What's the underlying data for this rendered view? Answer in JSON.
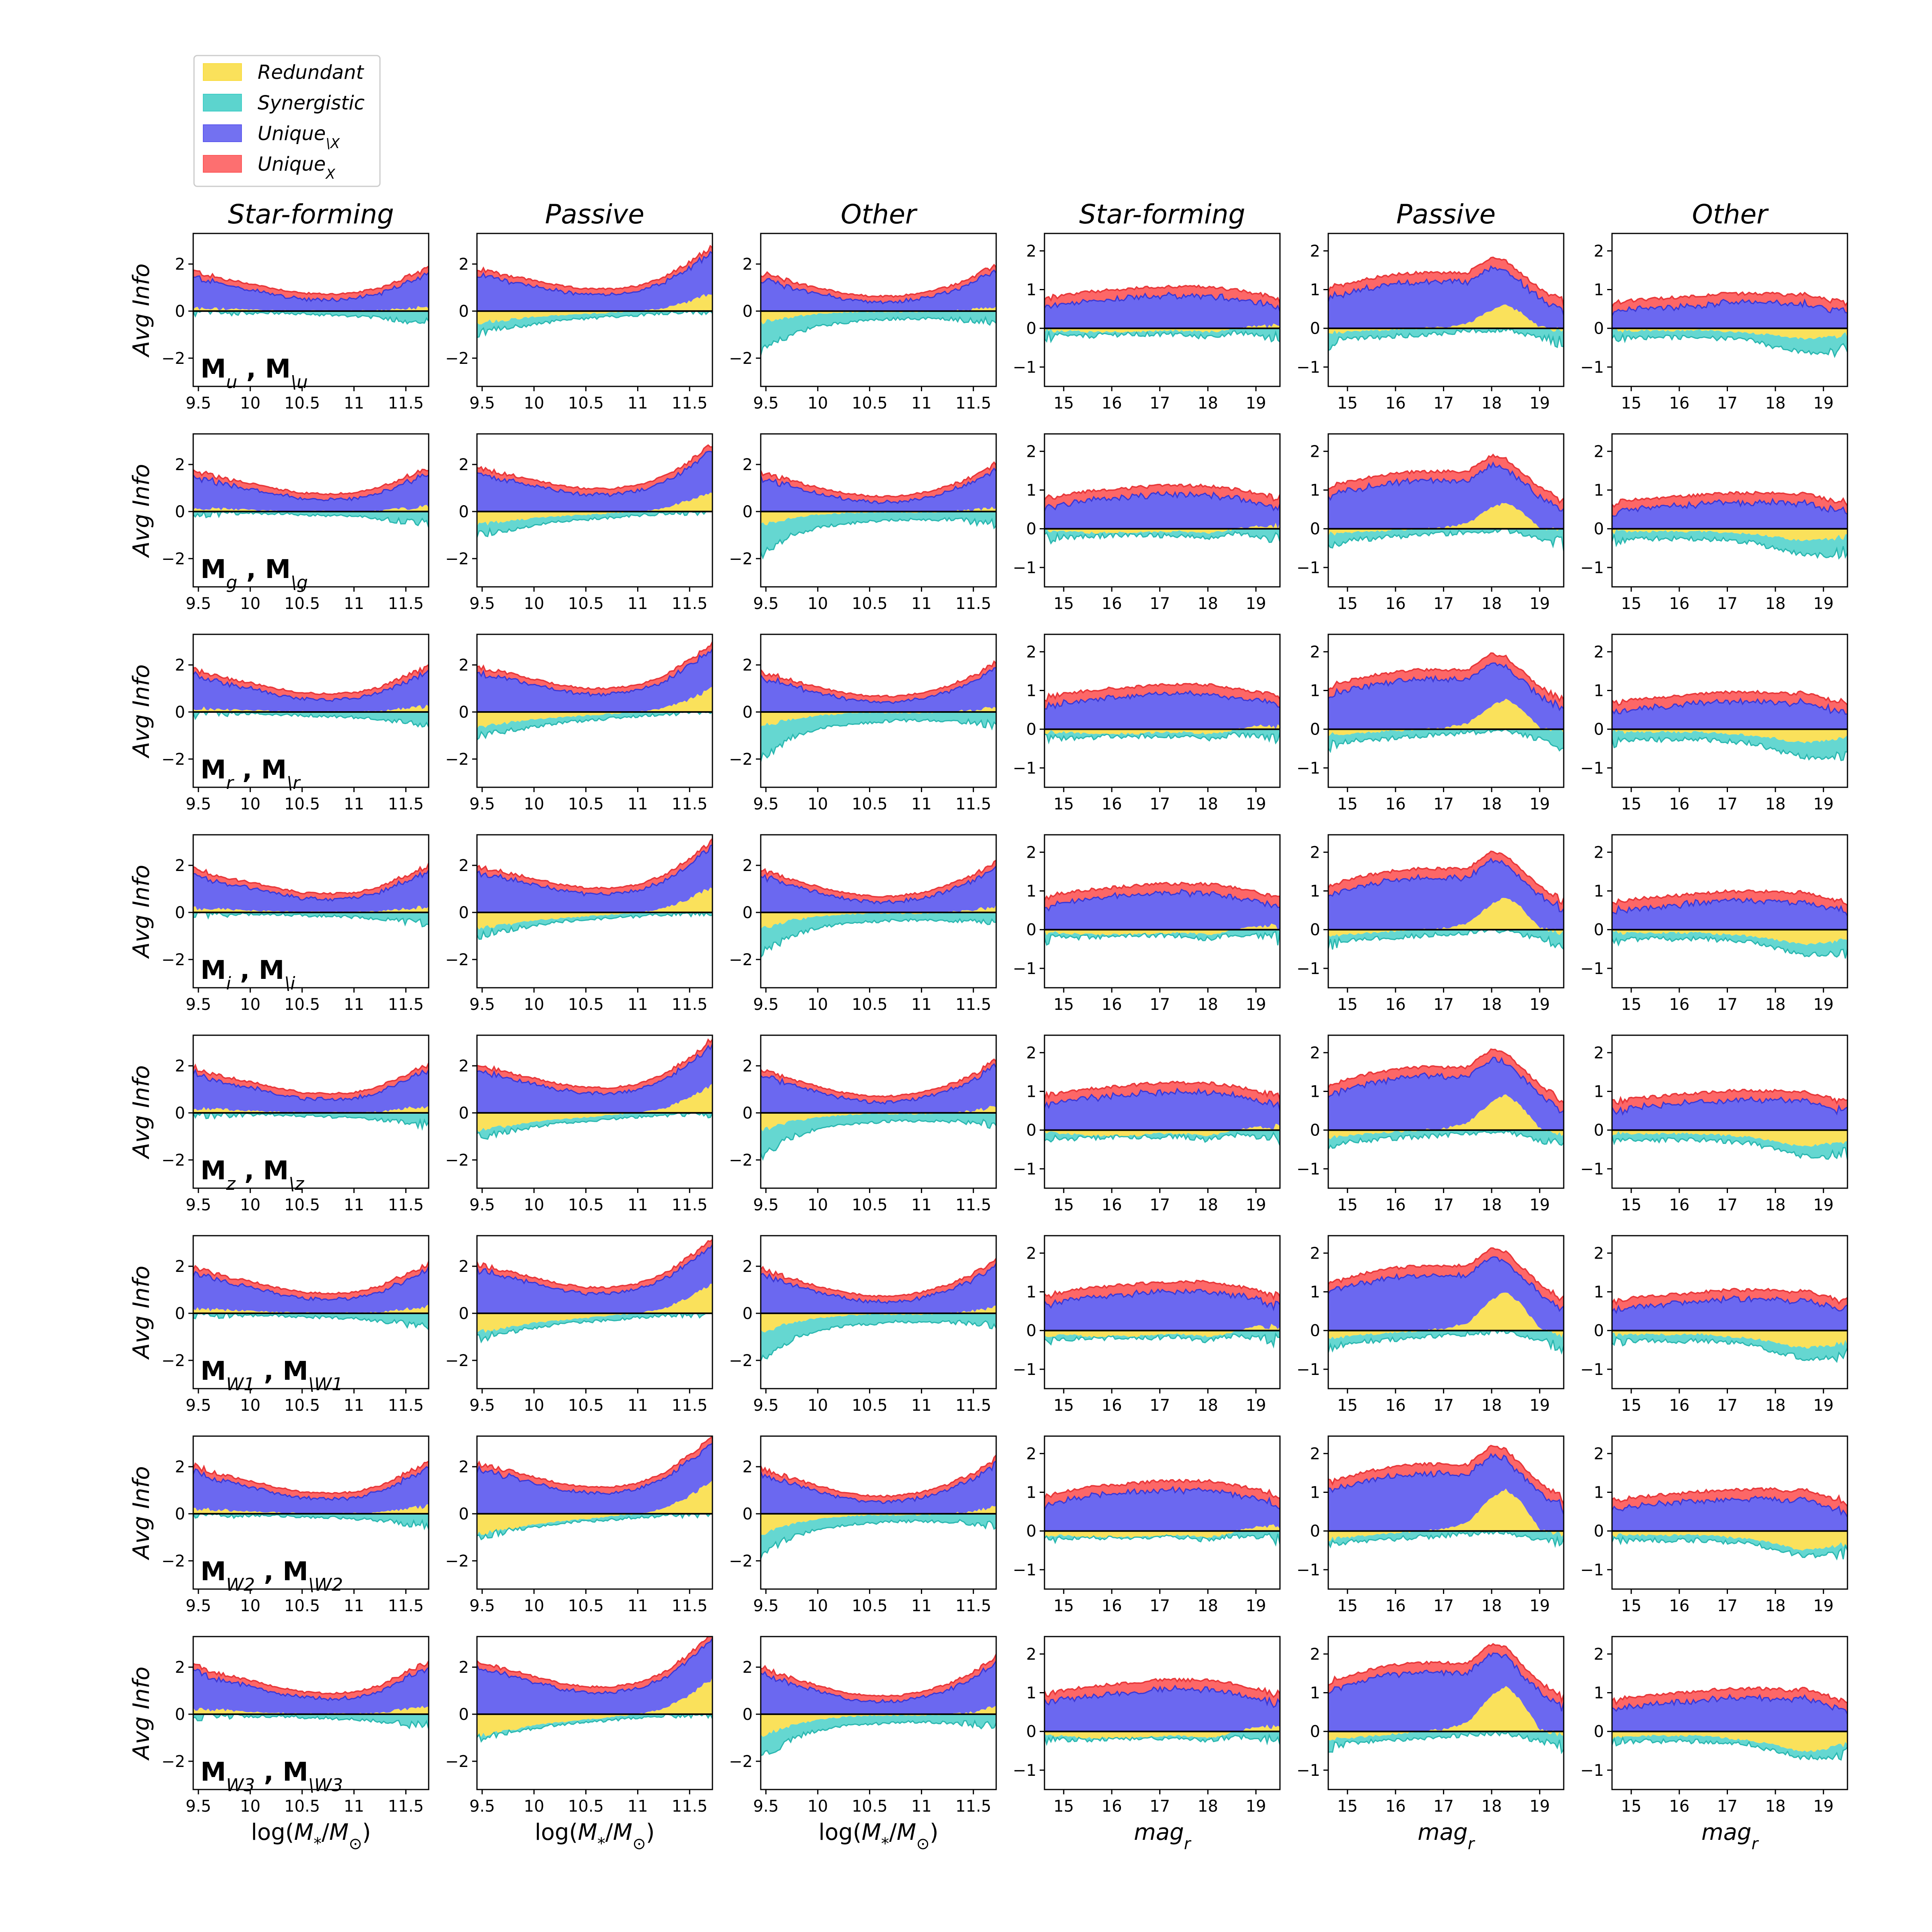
{
  "chart_data": {
    "type": "area",
    "description_series": [
      "Redundant",
      "Synergistic",
      "Unique_{\\X}",
      "Unique_{X}"
    ],
    "legend": [
      {
        "key": "redundant",
        "label": "Redundant",
        "color": "#f9dc3e"
      },
      {
        "key": "synergistic",
        "label": "Synergistic",
        "color": "#3fcdc6"
      },
      {
        "key": "unique_notx",
        "label": "Unique",
        "sub": "\\X",
        "color": "#5b58ee"
      },
      {
        "key": "unique_x",
        "label": "Unique",
        "sub": "X",
        "color": "#fd5657"
      }
    ],
    "column_titles": [
      "Star-forming",
      "Passive",
      "Other",
      "Star-forming",
      "Passive",
      "Other"
    ],
    "ylabel": "Avg Info",
    "x_axes": {
      "mass": {
        "label_main": "log(",
        "label_var": "M",
        "label_sub1": "*",
        "label_mid": "/",
        "label_var2": "M",
        "label_sub2": "⊙",
        "label_end": ")",
        "range": [
          9.45,
          11.72
        ],
        "ticks": [
          9.5,
          10,
          10.5,
          11,
          11.5
        ],
        "tick_labels": [
          "9.5",
          "10",
          "10.5",
          "11",
          "11.5"
        ]
      },
      "mag": {
        "label_main": "mag",
        "label_sub": "r",
        "range": [
          14.6,
          19.5
        ],
        "ticks": [
          15,
          16,
          17,
          18,
          19
        ],
        "tick_labels": [
          "15",
          "16",
          "17",
          "18",
          "19"
        ]
      }
    },
    "y_axes": {
      "mass": {
        "range": [
          -3.2,
          3.3
        ],
        "ticks": [
          -2,
          0,
          2
        ],
        "tick_labels": [
          "−2",
          "0",
          "2"
        ]
      },
      "mag": {
        "range": [
          -1.5,
          2.45
        ],
        "ticks": [
          -1,
          0,
          1,
          2
        ],
        "tick_labels": [
          "−1",
          "0",
          "1",
          "2"
        ]
      }
    },
    "rows": [
      {
        "band": "u",
        "label_a": "M",
        "sub_a": "u",
        "label_b": "M",
        "sub_b": "\\u"
      },
      {
        "band": "g",
        "label_a": "M",
        "sub_a": "g",
        "label_b": "M",
        "sub_b": "\\g"
      },
      {
        "band": "r",
        "label_a": "M",
        "sub_a": "r",
        "label_b": "M",
        "sub_b": "\\r"
      },
      {
        "band": "i",
        "label_a": "M",
        "sub_a": "i",
        "label_b": "M",
        "sub_b": "\\i"
      },
      {
        "band": "z",
        "label_a": "M",
        "sub_a": "z",
        "label_b": "M",
        "sub_b": "\\z"
      },
      {
        "band": "W1",
        "label_a": "M",
        "sub_a": "W1",
        "label_b": "M",
        "sub_b": "\\W1"
      },
      {
        "band": "W2",
        "label_a": "M",
        "sub_a": "W2",
        "label_b": "M",
        "sub_b": "\\W2"
      },
      {
        "band": "W3",
        "label_a": "M",
        "sub_a": "W3",
        "label_b": "M",
        "sub_b": "\\W3"
      }
    ],
    "profiles": {
      "note": "Approximate stacked averages read off the curves; x in data units, y in Avg Info.",
      "mass": {
        "x": [
          9.45,
          9.75,
          10.0,
          10.25,
          10.5,
          10.75,
          11.0,
          11.25,
          11.5,
          11.72
        ],
        "sf_total": [
          1.9,
          1.5,
          1.3,
          1.05,
          0.85,
          0.8,
          0.85,
          1.1,
          1.6,
          2.0
        ],
        "sf_redundant": [
          0.2,
          0.15,
          0.1,
          0.05,
          0.02,
          0.02,
          0.02,
          0.05,
          0.2,
          0.3
        ],
        "sf_synergistic": [
          -0.1,
          -0.1,
          -0.1,
          -0.1,
          -0.15,
          -0.2,
          -0.25,
          -0.35,
          -0.5,
          -0.6
        ],
        "passive_total": [
          2.0,
          1.7,
          1.45,
          1.2,
          1.05,
          1.05,
          1.2,
          1.6,
          2.3,
          3.1
        ],
        "passive_redundant": [
          -0.8,
          -0.6,
          -0.4,
          -0.3,
          -0.2,
          -0.1,
          0.0,
          0.2,
          0.7,
          1.3
        ],
        "passive_synergistic": [
          -1.2,
          -0.9,
          -0.7,
          -0.5,
          -0.4,
          -0.3,
          -0.2,
          -0.1,
          -0.05,
          0.0
        ],
        "other_total": [
          1.8,
          1.4,
          1.1,
          0.85,
          0.7,
          0.7,
          0.85,
          1.15,
          1.6,
          2.2
        ],
        "other_redundant": [
          -0.8,
          -0.4,
          -0.2,
          -0.1,
          -0.05,
          -0.05,
          -0.05,
          0.0,
          0.1,
          0.3
        ],
        "other_synergistic": [
          -2.2,
          -1.2,
          -0.8,
          -0.6,
          -0.5,
          -0.4,
          -0.4,
          -0.4,
          -0.5,
          -0.6
        ]
      },
      "mag": {
        "x": [
          14.6,
          15.0,
          15.5,
          16.0,
          16.5,
          17.0,
          17.5,
          18.0,
          18.3,
          18.6,
          19.0,
          19.5
        ],
        "sf_total": [
          0.85,
          0.95,
          1.05,
          1.1,
          1.15,
          1.2,
          1.2,
          1.2,
          1.15,
          1.1,
          1.0,
          0.85
        ],
        "sf_redundant": [
          -0.1,
          -0.1,
          -0.15,
          -0.15,
          -0.15,
          -0.1,
          -0.1,
          -0.15,
          -0.1,
          0.0,
          0.1,
          0.1
        ],
        "sf_synergistic": [
          -0.3,
          -0.25,
          -0.25,
          -0.2,
          -0.2,
          -0.2,
          -0.2,
          -0.3,
          -0.2,
          -0.15,
          -0.2,
          -0.3
        ],
        "passive_total": [
          1.15,
          1.3,
          1.45,
          1.55,
          1.6,
          1.6,
          1.6,
          2.05,
          1.95,
          1.6,
          1.15,
          0.75
        ],
        "passive_redundant": [
          -0.2,
          -0.15,
          -0.1,
          -0.05,
          0.0,
          0.05,
          0.2,
          0.8,
          1.0,
          0.7,
          0.05,
          -0.1
        ],
        "passive_synergistic": [
          -0.5,
          -0.35,
          -0.3,
          -0.25,
          -0.2,
          -0.15,
          -0.1,
          -0.05,
          -0.05,
          -0.15,
          -0.3,
          -0.45
        ],
        "other_total": [
          0.7,
          0.8,
          0.85,
          0.9,
          0.95,
          1.0,
          1.0,
          1.0,
          0.95,
          1.0,
          0.85,
          0.7
        ],
        "other_redundant": [
          -0.1,
          -0.1,
          -0.1,
          -0.1,
          -0.1,
          -0.15,
          -0.2,
          -0.3,
          -0.4,
          -0.45,
          -0.4,
          -0.3
        ],
        "other_synergistic": [
          -0.35,
          -0.3,
          -0.3,
          -0.3,
          -0.3,
          -0.35,
          -0.4,
          -0.6,
          -0.7,
          -0.8,
          -0.8,
          -0.7
        ]
      }
    }
  }
}
